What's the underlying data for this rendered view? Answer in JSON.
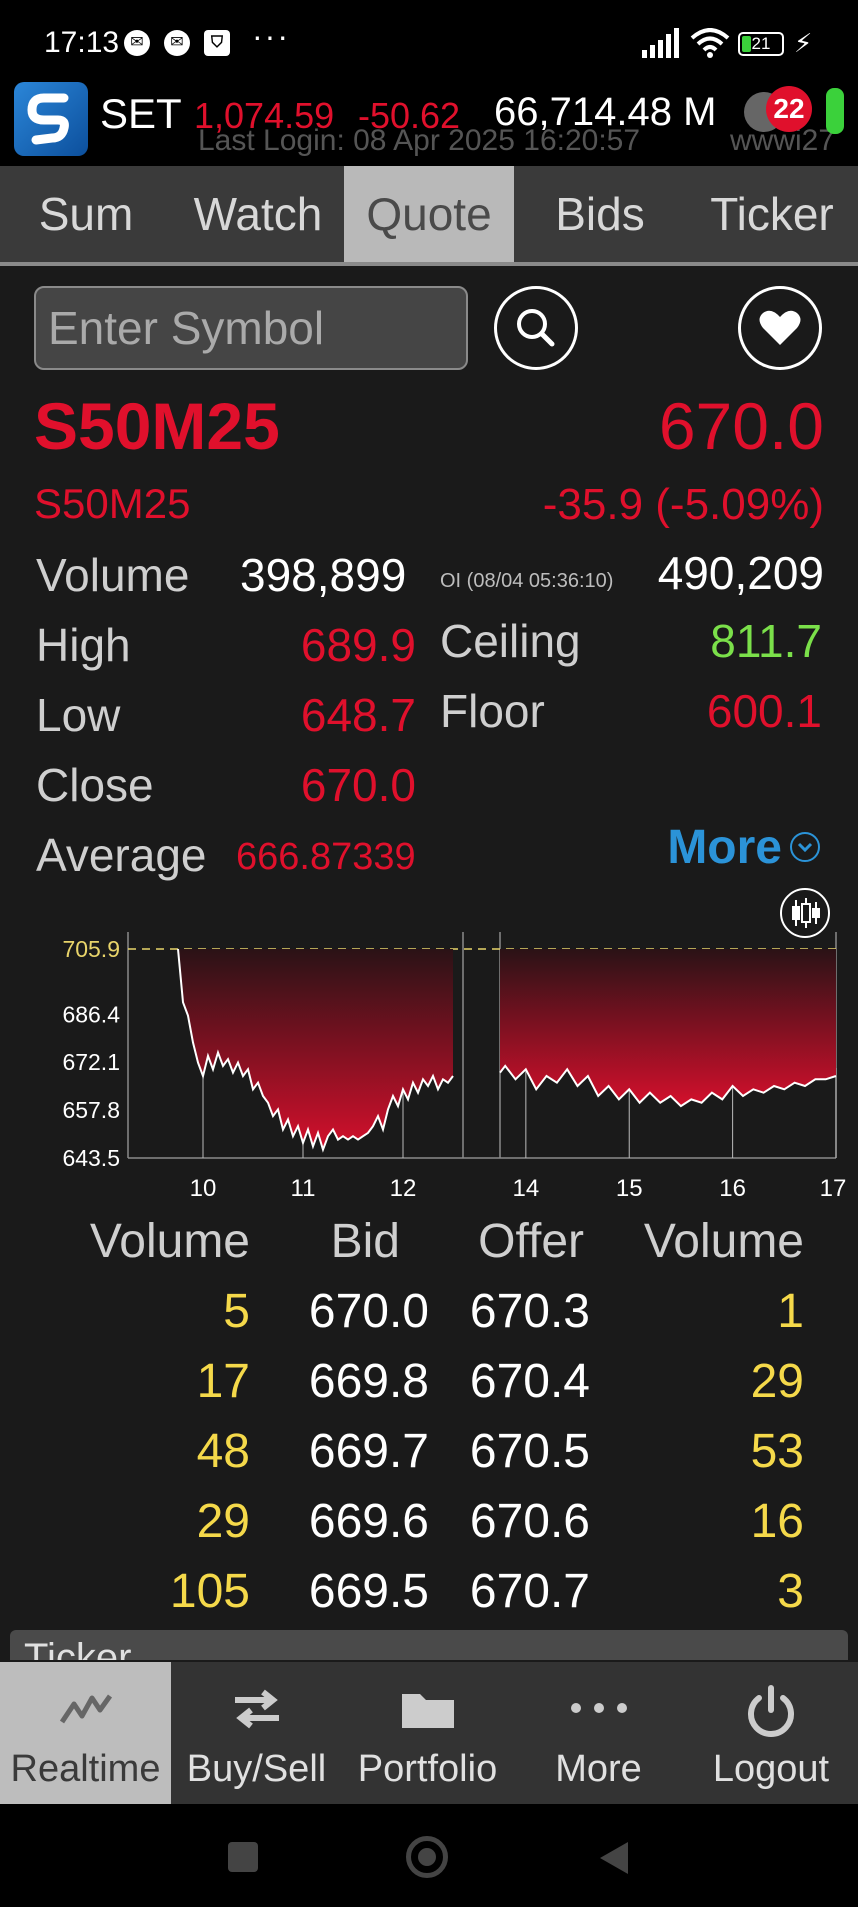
{
  "status_bar": {
    "time": "17:13",
    "battery": "21",
    "icons": [
      "messenger-icon",
      "messenger-icon",
      "shield-icon"
    ],
    "more": "···"
  },
  "header": {
    "market": "SET",
    "index_value": "1,074.59",
    "index_change": "-50.62",
    "market_value": "66,714.48 M",
    "last_login": "Last Login: 08 Apr 2025 16:20:57",
    "user": "wwwi27",
    "notification_count": "22"
  },
  "tabs": [
    {
      "label": "Sum"
    },
    {
      "label": "Watch"
    },
    {
      "label": "Quote"
    },
    {
      "label": "Bids"
    },
    {
      "label": "Ticker"
    }
  ],
  "search": {
    "placeholder": "Enter Symbol"
  },
  "quote": {
    "symbol": "S50M25",
    "last": "670.0",
    "symbol_name": "S50M25",
    "change": "-35.9 (-5.09%)",
    "volume_label": "Volume",
    "volume": "398,899",
    "oi_label": "OI (08/04 05:36:10)",
    "oi": "490,209",
    "high_label": "High",
    "high": "689.9",
    "ceiling_label": "Ceiling",
    "ceiling": "811.7",
    "low_label": "Low",
    "low": "648.7",
    "floor_label": "Floor",
    "floor": "600.1",
    "close_label": "Close",
    "close": "670.0",
    "average_label": "Average",
    "average": "666.87339",
    "more_label": "More"
  },
  "chart_data": {
    "type": "area",
    "y_ticks": [
      "705.9",
      "686.4",
      "672.1",
      "657.8",
      "643.5"
    ],
    "x_ticks": [
      "10",
      "11",
      "12",
      "14",
      "15",
      "16",
      "17"
    ],
    "ylim": [
      643.5,
      708
    ],
    "prior_close": 705.9,
    "sessions": [
      {
        "x": [
          9.75,
          9.8,
          9.85,
          9.9,
          9.95,
          10.0,
          10.05,
          10.1,
          10.15,
          10.2,
          10.25,
          10.3,
          10.35,
          10.4,
          10.45,
          10.5,
          10.55,
          10.6,
          10.65,
          10.7,
          10.75,
          10.8,
          10.85,
          10.9,
          10.95,
          11.0,
          11.05,
          11.1,
          11.15,
          11.2,
          11.25,
          11.3,
          11.35,
          11.4,
          11.45,
          11.5,
          11.55,
          11.6,
          11.65,
          11.7,
          11.75,
          11.8,
          11.85,
          11.9,
          11.95,
          12.0,
          12.05,
          12.1,
          12.15,
          12.2,
          12.25,
          12.3,
          12.35,
          12.4,
          12.45,
          12.5
        ],
        "y": [
          705.9,
          690,
          686,
          678,
          672,
          668,
          674,
          670,
          675,
          671,
          673,
          669,
          672,
          668,
          670,
          664,
          666,
          662,
          660,
          656,
          658,
          652,
          655,
          650,
          653,
          648,
          652,
          647,
          651,
          646,
          650,
          652,
          649,
          650,
          649,
          650,
          649,
          650,
          651,
          653,
          656,
          652,
          658,
          662,
          659,
          664,
          661,
          666,
          663,
          667,
          665,
          668,
          664,
          667,
          666,
          668
        ]
      },
      {
        "x": [
          13.75,
          13.8,
          13.9,
          14.0,
          14.1,
          14.2,
          14.3,
          14.4,
          14.5,
          14.6,
          14.7,
          14.8,
          14.9,
          15.0,
          15.1,
          15.2,
          15.3,
          15.4,
          15.5,
          15.6,
          15.7,
          15.8,
          15.9,
          16.0,
          16.1,
          16.2,
          16.3,
          16.4,
          16.5,
          16.6,
          16.7,
          16.8,
          16.9,
          17.0
        ],
        "y": [
          669,
          671,
          667,
          670,
          664,
          668,
          666,
          670,
          665,
          668,
          662,
          665,
          661,
          664,
          660,
          663,
          660,
          662,
          659,
          661,
          660,
          663,
          661,
          665,
          662,
          664,
          663,
          665,
          664,
          666,
          665,
          667,
          667,
          668
        ]
      }
    ]
  },
  "orderbook": {
    "headers": [
      "Volume",
      "Bid",
      "Offer",
      "Volume"
    ],
    "rows": [
      {
        "bid_vol": "5",
        "bid": "670.0",
        "offer": "670.3",
        "offer_vol": "1"
      },
      {
        "bid_vol": "17",
        "bid": "669.8",
        "offer": "670.4",
        "offer_vol": "29"
      },
      {
        "bid_vol": "48",
        "bid": "669.7",
        "offer": "670.5",
        "offer_vol": "53"
      },
      {
        "bid_vol": "29",
        "bid": "669.6",
        "offer": "670.6",
        "offer_vol": "16"
      },
      {
        "bid_vol": "105",
        "bid": "669.5",
        "offer": "670.7",
        "offer_vol": "3"
      }
    ]
  },
  "ticker_panel": {
    "label": "Ticker"
  },
  "bottom_nav": [
    {
      "label": "Realtime"
    },
    {
      "label": "Buy/Sell"
    },
    {
      "label": "Portfolio"
    },
    {
      "label": "More"
    },
    {
      "label": "Logout"
    }
  ],
  "colors": {
    "down": "#e0102c",
    "up": "#7be04a",
    "volume": "#f5d94a",
    "link": "#2b93d8"
  }
}
